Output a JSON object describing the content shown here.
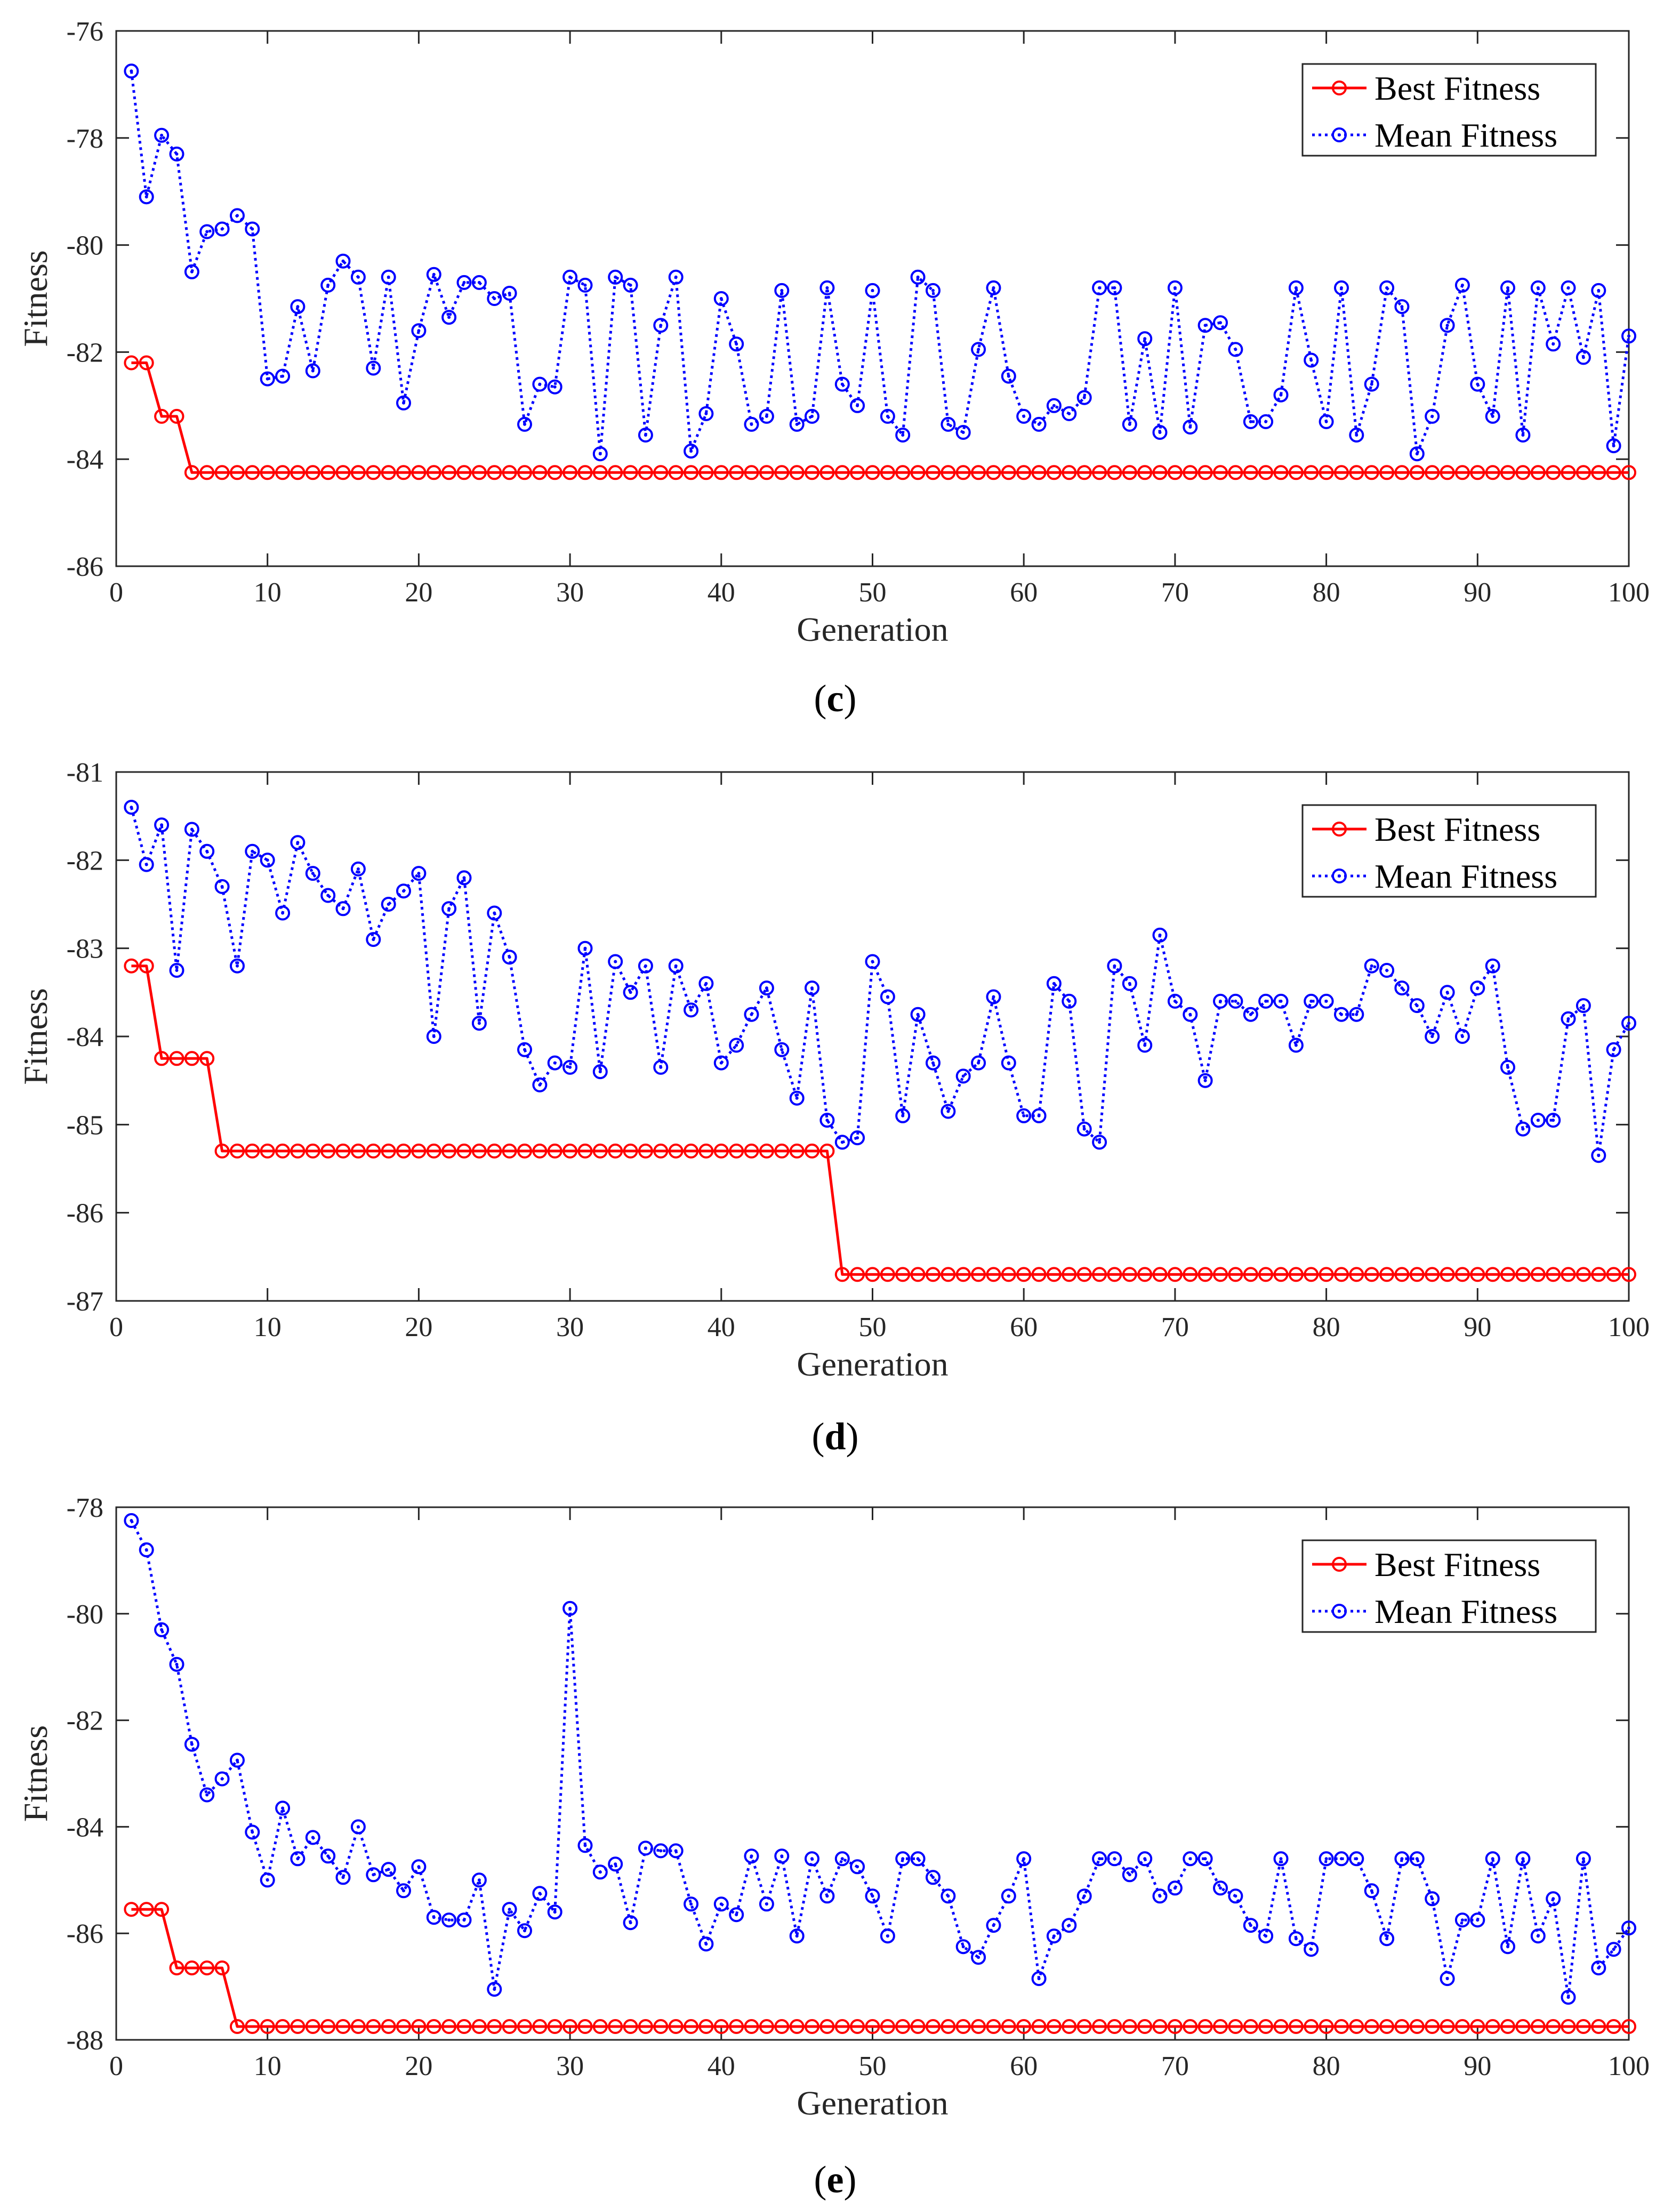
{
  "colors": {
    "best": "#ff0000",
    "mean": "#0000ff",
    "axis": "#262626"
  },
  "legend_labels": {
    "best": "Best Fitness",
    "mean": "Mean Fitness"
  },
  "chart_data": [
    {
      "type": "line",
      "panel": "c",
      "caption": {
        "open": "(",
        "letter": "c",
        "close": ")"
      },
      "xlabel": "Generation",
      "ylabel": "Fitness",
      "xlim": [
        0,
        100
      ],
      "ylim": [
        -86,
        -76
      ],
      "xticks": [
        0,
        10,
        20,
        30,
        40,
        50,
        60,
        70,
        80,
        90,
        100
      ],
      "yticks": [
        -86,
        -84,
        -82,
        -80,
        -78,
        -76
      ],
      "legend_position": "top-right",
      "series": [
        {
          "name": "Best Fitness",
          "key": "best",
          "values": [
            -82.2,
            -82.2,
            -83.2,
            -83.2,
            -84.25,
            -84.25,
            -84.25,
            -84.25,
            -84.25,
            -84.25,
            -84.25,
            -84.25,
            -84.25,
            -84.25,
            -84.25,
            -84.25,
            -84.25,
            -84.25,
            -84.25,
            -84.25,
            -84.25,
            -84.25,
            -84.25,
            -84.25,
            -84.25,
            -84.25,
            -84.25,
            -84.25,
            -84.25,
            -84.25,
            -84.25,
            -84.25,
            -84.25,
            -84.25,
            -84.25,
            -84.25,
            -84.25,
            -84.25,
            -84.25,
            -84.25,
            -84.25,
            -84.25,
            -84.25,
            -84.25,
            -84.25,
            -84.25,
            -84.25,
            -84.25,
            -84.25,
            -84.25,
            -84.25,
            -84.25,
            -84.25,
            -84.25,
            -84.25,
            -84.25,
            -84.25,
            -84.25,
            -84.25,
            -84.25,
            -84.25,
            -84.25,
            -84.25,
            -84.25,
            -84.25,
            -84.25,
            -84.25,
            -84.25,
            -84.25,
            -84.25,
            -84.25,
            -84.25,
            -84.25,
            -84.25,
            -84.25,
            -84.25,
            -84.25,
            -84.25,
            -84.25,
            -84.25,
            -84.25,
            -84.25,
            -84.25,
            -84.25,
            -84.25,
            -84.25,
            -84.25,
            -84.25,
            -84.25,
            -84.25,
            -84.25,
            -84.25,
            -84.25,
            -84.25,
            -84.25,
            -84.25,
            -84.25,
            -84.25,
            -84.25,
            -84.25
          ]
        },
        {
          "name": "Mean Fitness",
          "key": "mean",
          "values": [
            -76.75,
            -79.1,
            -77.95,
            -78.3,
            -80.5,
            -79.75,
            -79.7,
            -79.45,
            -79.7,
            -82.5,
            -82.45,
            -81.15,
            -82.35,
            -80.75,
            -80.3,
            -80.6,
            -82.3,
            -80.6,
            -82.95,
            -81.6,
            -80.55,
            -81.35,
            -80.7,
            -80.7,
            -81,
            -80.9,
            -83.35,
            -82.6,
            -82.65,
            -80.6,
            -80.75,
            -83.9,
            -80.6,
            -80.75,
            -83.55,
            -81.5,
            -80.6,
            -83.85,
            -83.15,
            -81,
            -81.85,
            -83.35,
            -83.2,
            -80.85,
            -83.35,
            -83.2,
            -80.8,
            -82.6,
            -83,
            -80.85,
            -83.2,
            -83.55,
            -80.6,
            -80.85,
            -83.35,
            -83.5,
            -81.95,
            -80.8,
            -82.45,
            -83.2,
            -83.35,
            -83,
            -83.15,
            -82.85,
            -80.8,
            -80.8,
            -83.35,
            -81.75,
            -83.5,
            -80.8,
            -83.4,
            -81.5,
            -81.45,
            -81.95,
            -83.3,
            -83.3,
            -82.8,
            -80.8,
            -82.15,
            -83.3,
            -80.8,
            -83.55,
            -82.6,
            -80.8,
            -81.15,
            -83.9,
            -83.2,
            -81.5,
            -80.75,
            -82.6,
            -83.2,
            -80.8,
            -83.55,
            -80.8,
            -81.85,
            -80.8,
            -82.1,
            -80.85,
            -83.75,
            -81.7
          ]
        }
      ]
    },
    {
      "type": "line",
      "panel": "d",
      "caption": {
        "open": "(",
        "letter": "d",
        "close": ")"
      },
      "xlabel": "Generation",
      "ylabel": "Fitness",
      "xlim": [
        0,
        100
      ],
      "ylim": [
        -87,
        -81
      ],
      "xticks": [
        0,
        10,
        20,
        30,
        40,
        50,
        60,
        70,
        80,
        90,
        100
      ],
      "yticks": [
        -87,
        -86,
        -85,
        -84,
        -83,
        -82,
        -81
      ],
      "legend_position": "top-right",
      "series": [
        {
          "name": "Best Fitness",
          "key": "best",
          "values": [
            -83.2,
            -83.2,
            -84.25,
            -84.25,
            -84.25,
            -84.25,
            -85.3,
            -85.3,
            -85.3,
            -85.3,
            -85.3,
            -85.3,
            -85.3,
            -85.3,
            -85.3,
            -85.3,
            -85.3,
            -85.3,
            -85.3,
            -85.3,
            -85.3,
            -85.3,
            -85.3,
            -85.3,
            -85.3,
            -85.3,
            -85.3,
            -85.3,
            -85.3,
            -85.3,
            -85.3,
            -85.3,
            -85.3,
            -85.3,
            -85.3,
            -85.3,
            -85.3,
            -85.3,
            -85.3,
            -85.3,
            -85.3,
            -85.3,
            -85.3,
            -85.3,
            -85.3,
            -85.3,
            -85.3,
            -86.7,
            -86.7,
            -86.7,
            -86.7,
            -86.7,
            -86.7,
            -86.7,
            -86.7,
            -86.7,
            -86.7,
            -86.7,
            -86.7,
            -86.7,
            -86.7,
            -86.7,
            -86.7,
            -86.7,
            -86.7,
            -86.7,
            -86.7,
            -86.7,
            -86.7,
            -86.7,
            -86.7,
            -86.7,
            -86.7,
            -86.7,
            -86.7,
            -86.7,
            -86.7,
            -86.7,
            -86.7,
            -86.7,
            -86.7,
            -86.7,
            -86.7,
            -86.7,
            -86.7,
            -86.7,
            -86.7,
            -86.7,
            -86.7,
            -86.7,
            -86.7,
            -86.7,
            -86.7,
            -86.7,
            -86.7,
            -86.7,
            -86.7,
            -86.7,
            -86.7,
            -86.7
          ]
        },
        {
          "name": "Mean Fitness",
          "key": "mean",
          "values": [
            -81.4,
            -82.05,
            -81.6,
            -83.25,
            -81.65,
            -81.9,
            -82.3,
            -83.2,
            -81.9,
            -82,
            -82.6,
            -81.8,
            -82.15,
            -82.4,
            -82.55,
            -82.1,
            -82.9,
            -82.5,
            -82.35,
            -82.15,
            -84,
            -82.55,
            -82.2,
            -83.85,
            -82.6,
            -83.1,
            -84.15,
            -84.55,
            -84.3,
            -84.35,
            -83,
            -84.4,
            -83.15,
            -83.5,
            -83.2,
            -84.35,
            -83.2,
            -83.7,
            -83.4,
            -84.3,
            -84.1,
            -83.75,
            -83.45,
            -84.15,
            -84.7,
            -83.45,
            -84.95,
            -85.2,
            -85.15,
            -83.15,
            -83.55,
            -84.9,
            -83.75,
            -84.3,
            -84.85,
            -84.45,
            -84.3,
            -83.55,
            -84.3,
            -84.9,
            -84.9,
            -83.4,
            -83.6,
            -85.05,
            -85.2,
            -83.2,
            -83.4,
            -84.1,
            -82.85,
            -83.6,
            -83.75,
            -84.5,
            -83.6,
            -83.6,
            -83.75,
            -83.6,
            -83.6,
            -84.1,
            -83.6,
            -83.6,
            -83.75,
            -83.75,
            -83.2,
            -83.25,
            -83.45,
            -83.65,
            -84,
            -83.5,
            -84,
            -83.45,
            -83.2,
            -84.35,
            -85.05,
            -84.95,
            -84.95,
            -83.8,
            -83.65,
            -85.35,
            -84.15,
            -83.85
          ]
        }
      ]
    },
    {
      "type": "line",
      "panel": "e",
      "caption": {
        "open": "(",
        "letter": "e",
        "close": ")"
      },
      "xlabel": "Generation",
      "ylabel": "Fitness",
      "xlim": [
        0,
        100
      ],
      "ylim": [
        -88,
        -78
      ],
      "xticks": [
        0,
        10,
        20,
        30,
        40,
        50,
        60,
        70,
        80,
        90,
        100
      ],
      "yticks": [
        -88,
        -86,
        -84,
        -82,
        -80,
        -78
      ],
      "legend_position": "top-right",
      "series": [
        {
          "name": "Best Fitness",
          "key": "best",
          "values": [
            -85.55,
            -85.55,
            -85.55,
            -86.65,
            -86.65,
            -86.65,
            -86.65,
            -87.75,
            -87.75,
            -87.75,
            -87.75,
            -87.75,
            -87.75,
            -87.75,
            -87.75,
            -87.75,
            -87.75,
            -87.75,
            -87.75,
            -87.75,
            -87.75,
            -87.75,
            -87.75,
            -87.75,
            -87.75,
            -87.75,
            -87.75,
            -87.75,
            -87.75,
            -87.75,
            -87.75,
            -87.75,
            -87.75,
            -87.75,
            -87.75,
            -87.75,
            -87.75,
            -87.75,
            -87.75,
            -87.75,
            -87.75,
            -87.75,
            -87.75,
            -87.75,
            -87.75,
            -87.75,
            -87.75,
            -87.75,
            -87.75,
            -87.75,
            -87.75,
            -87.75,
            -87.75,
            -87.75,
            -87.75,
            -87.75,
            -87.75,
            -87.75,
            -87.75,
            -87.75,
            -87.75,
            -87.75,
            -87.75,
            -87.75,
            -87.75,
            -87.75,
            -87.75,
            -87.75,
            -87.75,
            -87.75,
            -87.75,
            -87.75,
            -87.75,
            -87.75,
            -87.75,
            -87.75,
            -87.75,
            -87.75,
            -87.75,
            -87.75,
            -87.75,
            -87.75,
            -87.75,
            -87.75,
            -87.75,
            -87.75,
            -87.75,
            -87.75,
            -87.75,
            -87.75,
            -87.75,
            -87.75,
            -87.75,
            -87.75,
            -87.75,
            -87.75,
            -87.75,
            -87.75,
            -87.75,
            -87.75
          ]
        },
        {
          "name": "Mean Fitness",
          "key": "mean",
          "values": [
            -78.25,
            -78.8,
            -80.3,
            -80.95,
            -82.45,
            -83.4,
            -83.1,
            -82.75,
            -84.1,
            -85,
            -83.65,
            -84.6,
            -84.2,
            -84.55,
            -84.95,
            -84,
            -84.9,
            -84.8,
            -85.2,
            -84.75,
            -85.7,
            -85.75,
            -85.75,
            -85,
            -87.05,
            -85.55,
            -85.95,
            -85.25,
            -85.6,
            -79.9,
            -84.35,
            -84.85,
            -84.7,
            -85.8,
            -84.4,
            -84.45,
            -84.45,
            -85.45,
            -86.2,
            -85.45,
            -85.65,
            -84.55,
            -85.45,
            -84.55,
            -86.05,
            -84.6,
            -85.3,
            -84.6,
            -84.75,
            -85.3,
            -86.05,
            -84.6,
            -84.6,
            -84.95,
            -85.3,
            -86.25,
            -86.45,
            -85.85,
            -85.3,
            -84.6,
            -86.85,
            -86.05,
            -85.85,
            -85.3,
            -84.6,
            -84.6,
            -84.9,
            -84.6,
            -85.3,
            -85.15,
            -84.6,
            -84.6,
            -85.15,
            -85.3,
            -85.85,
            -86.05,
            -84.6,
            -86.1,
            -86.3,
            -84.6,
            -84.6,
            -84.6,
            -85.2,
            -86.1,
            -84.6,
            -84.6,
            -85.35,
            -86.85,
            -85.75,
            -85.75,
            -84.6,
            -86.25,
            -84.6,
            -86.05,
            -85.35,
            -87.2,
            -84.6,
            -86.65,
            -86.3,
            -85.9
          ]
        }
      ]
    }
  ]
}
